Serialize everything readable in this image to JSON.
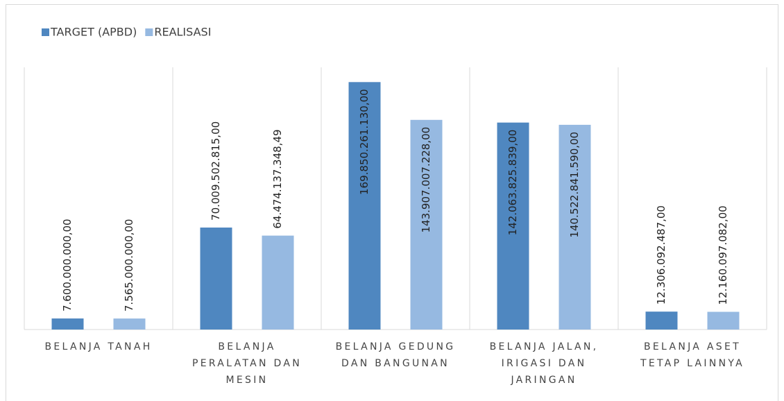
{
  "chart_data": {
    "type": "bar",
    "categories": [
      "BELANJA TANAH",
      "BELANJA PERALATAN DAN MESIN",
      "BELANJA GEDUNG DAN BANGUNAN",
      "BELANJA JALAN, IRIGASI DAN JARINGAN",
      "BELANJA ASET TETAP LAINNYA"
    ],
    "series": [
      {
        "name": "TARGET (APBD)",
        "color": "#4f87c0",
        "values": [
          7600000000,
          70009502815,
          169850261130,
          142063825839,
          12306092487
        ],
        "value_labels": [
          "7.600.000.000,00",
          "70.009.502.815,00",
          "169.850.261.130,00",
          "142.063.825.839,00",
          "12.306.092.487,00"
        ]
      },
      {
        "name": "REALISASI",
        "color": "#96b9e1",
        "values": [
          7565000000,
          64474137348.49,
          143907007228,
          140522841590,
          12160097082
        ],
        "value_labels": [
          "7.565.000.000,00",
          "64.474.137.348,49",
          "143.907.007.228,00",
          "140.522.841.590,00",
          "12.160.097.082,00"
        ]
      }
    ],
    "ylim": [
      0,
      180000000000
    ],
    "legend": "top-left"
  }
}
